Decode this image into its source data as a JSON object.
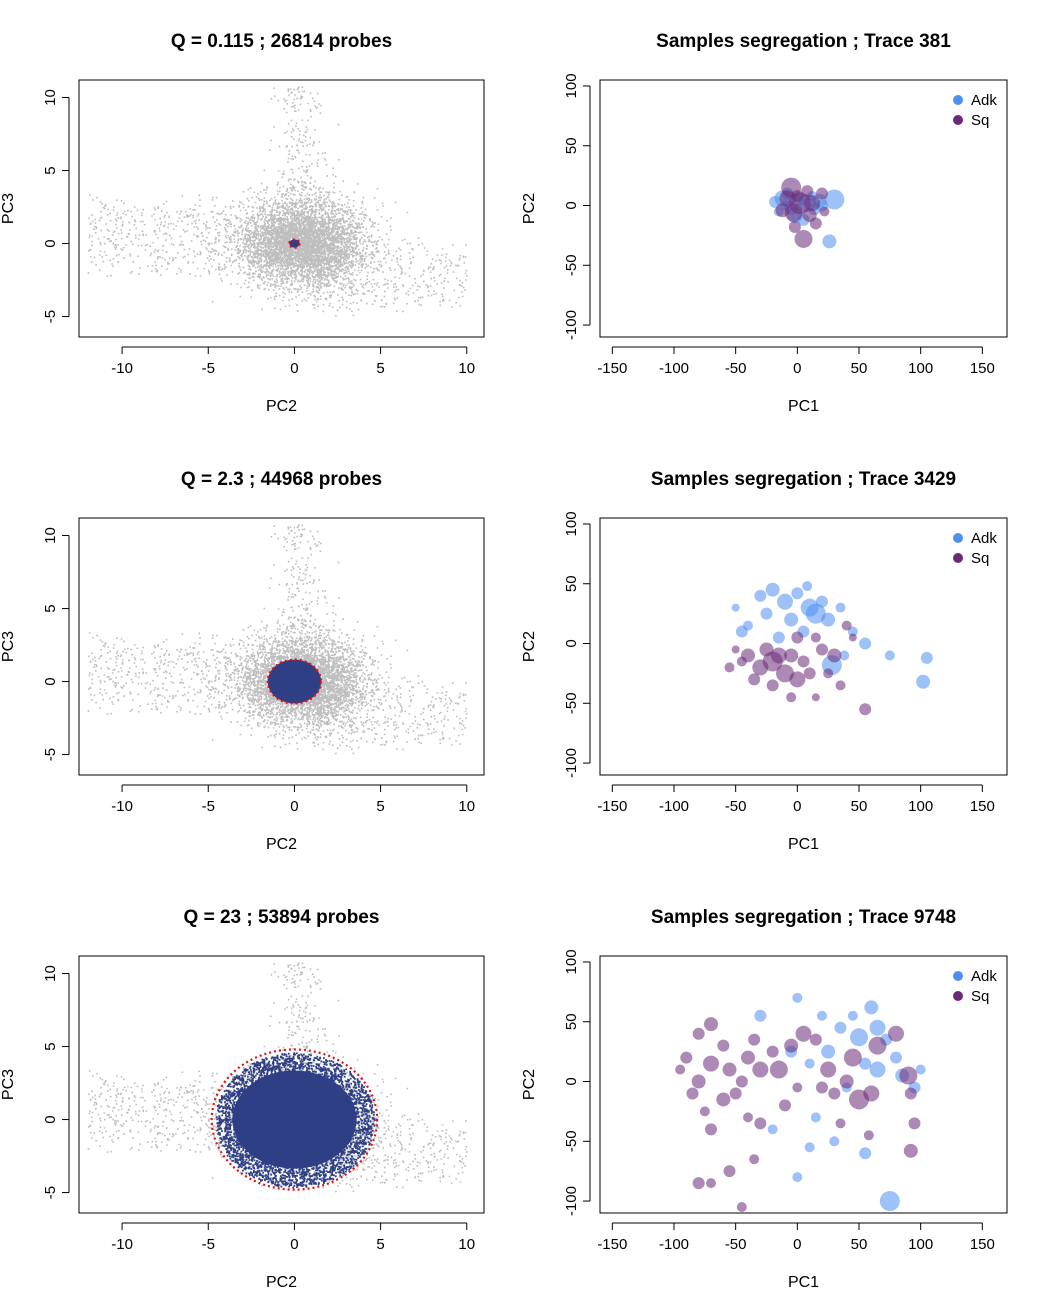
{
  "chart_data": [
    {
      "id": "left-1",
      "type": "scatter",
      "title": "Q = 0.115 ; 26814 probes",
      "xlabel": "PC2",
      "ylabel": "PC3",
      "xlim": [
        -12.5,
        11
      ],
      "ylim": [
        -6.4,
        11.2
      ],
      "xticks": [
        "-10",
        "-5",
        "0",
        "5",
        "10"
      ],
      "xtick_values": [
        -10,
        -5,
        0,
        5,
        10
      ],
      "yticks": [
        "-5",
        "0",
        "5",
        "10"
      ],
      "ytick_values": [
        -5,
        0,
        5,
        10
      ],
      "selection": {
        "shape": "ellipse",
        "cx": 0,
        "cy": 0,
        "rx": 0.3,
        "ry": 0.28,
        "fill_color": "#2e3f86",
        "boundary_color": "#dd1111"
      },
      "background_color": "#bebebe",
      "selected_probes": 26814
    },
    {
      "id": "right-1",
      "type": "scatter",
      "title": "Samples segregation ; Trace 381",
      "xlabel": "PC1",
      "ylabel": "PC2",
      "xlim": [
        -160,
        170
      ],
      "ylim": [
        -110,
        105
      ],
      "xticks": [
        "-150",
        "-100",
        "-50",
        "0",
        "50",
        "100",
        "150"
      ],
      "xtick_values": [
        -150,
        -100,
        -50,
        0,
        50,
        100,
        150
      ],
      "yticks": [
        "-100",
        "-50",
        "0",
        "50",
        "100"
      ],
      "ytick_values": [
        -100,
        -50,
        0,
        50,
        100
      ],
      "legend": [
        {
          "name": "Adk",
          "color": "#4f8ff0"
        },
        {
          "name": "Sq",
          "color": "#6a2a78"
        }
      ],
      "legend_position": "top-right",
      "series": [
        {
          "name": "Adk",
          "color": "#4f8ff0",
          "points": [
            [
              -18,
              3,
              6
            ],
            [
              -12,
              6,
              8
            ],
            [
              -5,
              -2,
              7
            ],
            [
              2,
              5,
              6
            ],
            [
              8,
              2,
              9
            ],
            [
              14,
              -3,
              6
            ],
            [
              30,
              5,
              10
            ],
            [
              26,
              -30,
              7
            ],
            [
              -8,
              10,
              6
            ],
            [
              -2,
              -8,
              8
            ],
            [
              12,
              8,
              5
            ],
            [
              20,
              0,
              6
            ],
            [
              -15,
              -5,
              5
            ],
            [
              5,
              -12,
              6
            ],
            [
              18,
              4,
              7
            ],
            [
              -10,
              0,
              5
            ]
          ]
        },
        {
          "name": "Sq",
          "color": "#6a2a78",
          "points": [
            [
              -5,
              15,
              10
            ],
            [
              2,
              2,
              11
            ],
            [
              5,
              -28,
              9
            ],
            [
              -2,
              -18,
              6
            ],
            [
              10,
              -8,
              7
            ],
            [
              20,
              10,
              6
            ],
            [
              -12,
              -4,
              7
            ],
            [
              15,
              -15,
              6
            ],
            [
              -8,
              6,
              8
            ],
            [
              8,
              12,
              6
            ],
            [
              -3,
              -6,
              9
            ],
            [
              22,
              -5,
              5
            ],
            [
              0,
              8,
              6
            ],
            [
              12,
              2,
              8
            ]
          ]
        }
      ]
    },
    {
      "id": "left-2",
      "type": "scatter",
      "title": "Q = 2.3 ; 44968 probes",
      "xlabel": "PC2",
      "ylabel": "PC3",
      "xlim": [
        -12.5,
        11
      ],
      "ylim": [
        -6.4,
        11.2
      ],
      "xticks": [
        "-10",
        "-5",
        "0",
        "5",
        "10"
      ],
      "xtick_values": [
        -10,
        -5,
        0,
        5,
        10
      ],
      "yticks": [
        "-5",
        "0",
        "5",
        "10"
      ],
      "ytick_values": [
        -5,
        0,
        5,
        10
      ],
      "selection": {
        "shape": "ellipse",
        "cx": 0,
        "cy": 0,
        "rx": 1.55,
        "ry": 1.5,
        "fill_color": "#2e3f86",
        "boundary_color": "#dd1111"
      },
      "background_color": "#bebebe",
      "selected_probes": 44968
    },
    {
      "id": "right-2",
      "type": "scatter",
      "title": "Samples segregation ; Trace 3429",
      "xlabel": "PC1",
      "ylabel": "PC2",
      "xlim": [
        -160,
        170
      ],
      "ylim": [
        -110,
        105
      ],
      "xticks": [
        "-150",
        "-100",
        "-50",
        "0",
        "50",
        "100",
        "150"
      ],
      "xtick_values": [
        -150,
        -100,
        -50,
        0,
        50,
        100,
        150
      ],
      "yticks": [
        "-100",
        "-50",
        "0",
        "50",
        "100"
      ],
      "ytick_values": [
        -100,
        -50,
        0,
        50,
        100
      ],
      "legend": [
        {
          "name": "Adk",
          "color": "#4f8ff0"
        },
        {
          "name": "Sq",
          "color": "#6a2a78"
        }
      ],
      "legend_position": "top-right",
      "series": [
        {
          "name": "Adk",
          "color": "#4f8ff0",
          "points": [
            [
              -30,
              40,
              6
            ],
            [
              -20,
              45,
              7
            ],
            [
              -10,
              35,
              8
            ],
            [
              0,
              42,
              6
            ],
            [
              10,
              30,
              9
            ],
            [
              15,
              25,
              10
            ],
            [
              25,
              20,
              7
            ],
            [
              35,
              30,
              5
            ],
            [
              -25,
              25,
              6
            ],
            [
              -5,
              20,
              7
            ],
            [
              5,
              10,
              6
            ],
            [
              28,
              -18,
              10
            ],
            [
              45,
              10,
              5
            ],
            [
              55,
              0,
              6
            ],
            [
              75,
              -10,
              5
            ],
            [
              105,
              -12,
              6
            ],
            [
              102,
              -32,
              7
            ],
            [
              -45,
              10,
              6
            ],
            [
              -40,
              15,
              5
            ],
            [
              -15,
              5,
              6
            ],
            [
              20,
              35,
              6
            ],
            [
              38,
              -10,
              5
            ],
            [
              -50,
              30,
              4
            ],
            [
              8,
              48,
              5
            ]
          ]
        },
        {
          "name": "Sq",
          "color": "#6a2a78",
          "points": [
            [
              -40,
              -10,
              7
            ],
            [
              -30,
              -20,
              8
            ],
            [
              -20,
              -15,
              10
            ],
            [
              -10,
              -25,
              9
            ],
            [
              0,
              -30,
              8
            ],
            [
              -25,
              -5,
              7
            ],
            [
              -15,
              -10,
              8
            ],
            [
              5,
              -15,
              6
            ],
            [
              15,
              5,
              5
            ],
            [
              20,
              -5,
              6
            ],
            [
              30,
              -10,
              7
            ],
            [
              40,
              15,
              5
            ],
            [
              55,
              -55,
              6
            ],
            [
              -5,
              -45,
              5
            ],
            [
              -50,
              -5,
              4
            ],
            [
              -35,
              -30,
              6
            ],
            [
              10,
              -25,
              6
            ],
            [
              35,
              -35,
              5
            ],
            [
              -55,
              -20,
              5
            ],
            [
              -5,
              -10,
              7
            ],
            [
              25,
              -25,
              5
            ],
            [
              45,
              5,
              4
            ],
            [
              -20,
              -35,
              6
            ],
            [
              15,
              -45,
              4
            ],
            [
              -45,
              -15,
              5
            ],
            [
              0,
              5,
              6
            ]
          ]
        }
      ]
    },
    {
      "id": "left-3",
      "type": "scatter",
      "title": "Q = 23 ; 53894 probes",
      "xlabel": "PC2",
      "ylabel": "PC3",
      "xlim": [
        -12.5,
        11
      ],
      "ylim": [
        -6.4,
        11.2
      ],
      "xticks": [
        "-10",
        "-5",
        "0",
        "5",
        "10"
      ],
      "xtick_values": [
        -10,
        -5,
        0,
        5,
        10
      ],
      "yticks": [
        "-5",
        "0",
        "5",
        "10"
      ],
      "ytick_values": [
        -5,
        0,
        5,
        10
      ],
      "selection": {
        "shape": "ellipse",
        "cx": 0,
        "cy": 0,
        "rx": 4.8,
        "ry": 4.8,
        "fill_color": "#2e3f86",
        "boundary_color": "#dd1111"
      },
      "background_color": "#bebebe",
      "selected_probes": 53894
    },
    {
      "id": "right-3",
      "type": "scatter",
      "title": "Samples segregation ; Trace 9748",
      "xlabel": "PC1",
      "ylabel": "PC2",
      "xlim": [
        -160,
        170
      ],
      "ylim": [
        -110,
        105
      ],
      "xticks": [
        "-150",
        "-100",
        "-50",
        "0",
        "50",
        "100",
        "150"
      ],
      "xtick_values": [
        -150,
        -100,
        -50,
        0,
        50,
        100,
        150
      ],
      "yticks": [
        "-100",
        "-50",
        "0",
        "50",
        "100"
      ],
      "ytick_values": [
        -100,
        -50,
        0,
        50,
        100
      ],
      "legend": [
        {
          "name": "Adk",
          "color": "#4f8ff0"
        },
        {
          "name": "Sq",
          "color": "#6a2a78"
        }
      ],
      "legend_position": "top-right",
      "series": [
        {
          "name": "Adk",
          "color": "#4f8ff0",
          "points": [
            [
              -30,
              55,
              6
            ],
            [
              0,
              70,
              5
            ],
            [
              20,
              55,
              5
            ],
            [
              35,
              45,
              6
            ],
            [
              50,
              37,
              9
            ],
            [
              60,
              62,
              7
            ],
            [
              65,
              45,
              8
            ],
            [
              72,
              35,
              6
            ],
            [
              -5,
              25,
              6
            ],
            [
              10,
              15,
              5
            ],
            [
              25,
              25,
              7
            ],
            [
              55,
              15,
              6
            ],
            [
              65,
              10,
              8
            ],
            [
              85,
              5,
              7
            ],
            [
              95,
              -5,
              6
            ],
            [
              100,
              10,
              5
            ],
            [
              10,
              -55,
              5
            ],
            [
              30,
              -50,
              5
            ],
            [
              55,
              -60,
              6
            ],
            [
              75,
              -100,
              10
            ],
            [
              0,
              -80,
              5
            ],
            [
              -20,
              -40,
              5
            ],
            [
              40,
              -5,
              5
            ],
            [
              15,
              -30,
              5
            ],
            [
              80,
              20,
              6
            ],
            [
              45,
              55,
              5
            ]
          ]
        },
        {
          "name": "Sq",
          "color": "#6a2a78",
          "points": [
            [
              -80,
              40,
              6
            ],
            [
              -70,
              48,
              7
            ],
            [
              -90,
              20,
              6
            ],
            [
              -95,
              10,
              5
            ],
            [
              -80,
              0,
              7
            ],
            [
              -70,
              15,
              8
            ],
            [
              -60,
              30,
              6
            ],
            [
              -55,
              10,
              7
            ],
            [
              -45,
              0,
              6
            ],
            [
              -40,
              20,
              7
            ],
            [
              -35,
              35,
              6
            ],
            [
              -30,
              10,
              8
            ],
            [
              -20,
              25,
              6
            ],
            [
              -15,
              10,
              9
            ],
            [
              -5,
              30,
              7
            ],
            [
              5,
              40,
              8
            ],
            [
              15,
              35,
              6
            ],
            [
              25,
              10,
              8
            ],
            [
              30,
              -10,
              6
            ],
            [
              40,
              0,
              7
            ],
            [
              45,
              20,
              9
            ],
            [
              50,
              -15,
              10
            ],
            [
              60,
              -10,
              8
            ],
            [
              65,
              30,
              9
            ],
            [
              80,
              40,
              8
            ],
            [
              90,
              5,
              9
            ],
            [
              92,
              -10,
              6
            ],
            [
              95,
              -35,
              6
            ],
            [
              92,
              -58,
              7
            ],
            [
              -55,
              -75,
              6
            ],
            [
              -80,
              -85,
              6
            ],
            [
              -70,
              -85,
              5
            ],
            [
              -45,
              -105,
              5
            ],
            [
              -35,
              -65,
              5
            ],
            [
              -70,
              -40,
              6
            ],
            [
              -85,
              -10,
              6
            ],
            [
              -60,
              -15,
              7
            ],
            [
              -30,
              -35,
              6
            ],
            [
              -50,
              -10,
              6
            ],
            [
              0,
              -5,
              5
            ],
            [
              -75,
              -25,
              5
            ],
            [
              -10,
              -20,
              6
            ],
            [
              35,
              -35,
              5
            ],
            [
              58,
              -45,
              5
            ],
            [
              -40,
              -30,
              5
            ],
            [
              20,
              -5,
              6
            ]
          ]
        }
      ]
    }
  ]
}
